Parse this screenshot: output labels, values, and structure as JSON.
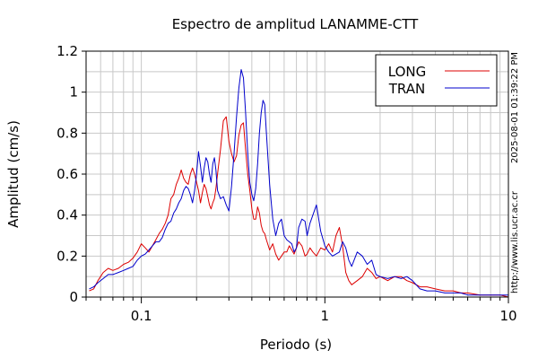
{
  "chart_data": {
    "type": "line",
    "title": "Espectro de amplitud LANAMME-CTT",
    "xlabel": "Periodo (s)",
    "ylabel": "Amplitud (cm/s)",
    "xscale": "log",
    "xlim": [
      0.05,
      10
    ],
    "ylim": [
      0,
      1.2
    ],
    "x_ticks": [
      {
        "value": 0.1,
        "label": "0.1"
      },
      {
        "value": 1,
        "label": "1"
      },
      {
        "value": 10,
        "label": "10"
      }
    ],
    "y_ticks": [
      {
        "value": 0,
        "label": "0"
      },
      {
        "value": 0.2,
        "label": "0.2"
      },
      {
        "value": 0.4,
        "label": "0.4"
      },
      {
        "value": 0.6,
        "label": "0.6"
      },
      {
        "value": 0.8,
        "label": "0.8"
      },
      {
        "value": 1,
        "label": "1"
      },
      {
        "value": 1.2,
        "label": "1.2"
      }
    ],
    "grid": true,
    "legend_position": "top-right",
    "timestamp": "2025-08-01 01:39:22 PM",
    "source": "http://www.lis.ucr.ac.cr",
    "series": [
      {
        "name": "LONG",
        "color": "#dd0000",
        "x": [
          0.052,
          0.055,
          0.058,
          0.062,
          0.066,
          0.07,
          0.075,
          0.08,
          0.085,
          0.09,
          0.095,
          0.1,
          0.105,
          0.11,
          0.115,
          0.12,
          0.125,
          0.13,
          0.135,
          0.14,
          0.145,
          0.15,
          0.155,
          0.16,
          0.165,
          0.17,
          0.175,
          0.18,
          0.185,
          0.19,
          0.195,
          0.2,
          0.205,
          0.21,
          0.215,
          0.22,
          0.225,
          0.23,
          0.235,
          0.24,
          0.245,
          0.25,
          0.255,
          0.26,
          0.27,
          0.28,
          0.29,
          0.3,
          0.31,
          0.32,
          0.33,
          0.34,
          0.35,
          0.36,
          0.37,
          0.38,
          0.39,
          0.4,
          0.41,
          0.42,
          0.43,
          0.44,
          0.45,
          0.46,
          0.47,
          0.48,
          0.5,
          0.52,
          0.54,
          0.56,
          0.58,
          0.6,
          0.62,
          0.64,
          0.66,
          0.68,
          0.7,
          0.72,
          0.75,
          0.78,
          0.8,
          0.83,
          0.86,
          0.9,
          0.95,
          1.0,
          1.05,
          1.1,
          1.15,
          1.2,
          1.25,
          1.3,
          1.35,
          1.4,
          1.5,
          1.6,
          1.7,
          1.8,
          1.9,
          2.0,
          2.2,
          2.4,
          2.6,
          2.8,
          3.0,
          3.3,
          3.6,
          4.0,
          4.5,
          5.0,
          5.5,
          6.0,
          7.0,
          8.0,
          9.0,
          10.0
        ],
        "y": [
          0.03,
          0.04,
          0.08,
          0.12,
          0.14,
          0.13,
          0.14,
          0.16,
          0.17,
          0.19,
          0.22,
          0.26,
          0.24,
          0.22,
          0.25,
          0.28,
          0.31,
          0.33,
          0.36,
          0.4,
          0.48,
          0.5,
          0.55,
          0.58,
          0.62,
          0.58,
          0.56,
          0.55,
          0.6,
          0.63,
          0.6,
          0.56,
          0.52,
          0.46,
          0.51,
          0.55,
          0.53,
          0.49,
          0.45,
          0.43,
          0.46,
          0.48,
          0.53,
          0.6,
          0.72,
          0.86,
          0.88,
          0.76,
          0.7,
          0.66,
          0.69,
          0.79,
          0.84,
          0.85,
          0.72,
          0.6,
          0.52,
          0.43,
          0.38,
          0.38,
          0.44,
          0.41,
          0.35,
          0.32,
          0.31,
          0.28,
          0.23,
          0.26,
          0.21,
          0.18,
          0.2,
          0.22,
          0.22,
          0.25,
          0.23,
          0.21,
          0.24,
          0.27,
          0.25,
          0.2,
          0.21,
          0.24,
          0.22,
          0.2,
          0.24,
          0.23,
          0.26,
          0.22,
          0.3,
          0.34,
          0.25,
          0.12,
          0.08,
          0.06,
          0.08,
          0.1,
          0.14,
          0.12,
          0.09,
          0.1,
          0.08,
          0.1,
          0.1,
          0.08,
          0.07,
          0.05,
          0.05,
          0.04,
          0.03,
          0.03,
          0.02,
          0.02,
          0.01,
          0.01,
          0.01,
          0.0
        ]
      },
      {
        "name": "TRAN",
        "color": "#0000cc",
        "x": [
          0.052,
          0.055,
          0.058,
          0.062,
          0.066,
          0.07,
          0.075,
          0.08,
          0.085,
          0.09,
          0.095,
          0.1,
          0.105,
          0.11,
          0.115,
          0.12,
          0.125,
          0.13,
          0.135,
          0.14,
          0.145,
          0.15,
          0.155,
          0.16,
          0.165,
          0.17,
          0.175,
          0.18,
          0.185,
          0.19,
          0.195,
          0.2,
          0.205,
          0.21,
          0.215,
          0.22,
          0.225,
          0.23,
          0.235,
          0.24,
          0.245,
          0.25,
          0.255,
          0.26,
          0.27,
          0.28,
          0.29,
          0.3,
          0.31,
          0.32,
          0.33,
          0.34,
          0.35,
          0.36,
          0.37,
          0.38,
          0.39,
          0.4,
          0.41,
          0.42,
          0.43,
          0.44,
          0.45,
          0.46,
          0.47,
          0.48,
          0.5,
          0.52,
          0.54,
          0.56,
          0.58,
          0.6,
          0.62,
          0.64,
          0.66,
          0.68,
          0.7,
          0.72,
          0.75,
          0.78,
          0.8,
          0.83,
          0.86,
          0.9,
          0.95,
          1.0,
          1.05,
          1.1,
          1.15,
          1.2,
          1.25,
          1.3,
          1.35,
          1.4,
          1.5,
          1.6,
          1.7,
          1.8,
          1.9,
          2.0,
          2.2,
          2.4,
          2.6,
          2.8,
          3.0,
          3.3,
          3.6,
          4.0,
          4.5,
          5.0,
          5.5,
          6.0,
          7.0,
          8.0,
          9.0,
          10.0
        ],
        "y": [
          0.04,
          0.05,
          0.07,
          0.09,
          0.11,
          0.11,
          0.12,
          0.13,
          0.14,
          0.15,
          0.18,
          0.2,
          0.21,
          0.23,
          0.25,
          0.27,
          0.27,
          0.29,
          0.33,
          0.36,
          0.37,
          0.41,
          0.43,
          0.46,
          0.48,
          0.52,
          0.54,
          0.53,
          0.5,
          0.46,
          0.52,
          0.6,
          0.71,
          0.64,
          0.56,
          0.63,
          0.68,
          0.66,
          0.6,
          0.56,
          0.65,
          0.68,
          0.62,
          0.52,
          0.48,
          0.49,
          0.45,
          0.42,
          0.54,
          0.7,
          0.88,
          1.02,
          1.11,
          1.07,
          0.9,
          0.7,
          0.56,
          0.5,
          0.47,
          0.53,
          0.65,
          0.8,
          0.9,
          0.96,
          0.94,
          0.8,
          0.55,
          0.38,
          0.3,
          0.36,
          0.38,
          0.3,
          0.28,
          0.27,
          0.26,
          0.22,
          0.24,
          0.34,
          0.38,
          0.37,
          0.3,
          0.36,
          0.4,
          0.45,
          0.32,
          0.25,
          0.22,
          0.2,
          0.21,
          0.22,
          0.27,
          0.24,
          0.18,
          0.15,
          0.22,
          0.2,
          0.16,
          0.18,
          0.11,
          0.1,
          0.09,
          0.1,
          0.09,
          0.1,
          0.08,
          0.04,
          0.03,
          0.03,
          0.02,
          0.02,
          0.02,
          0.01,
          0.01,
          0.01,
          0.01,
          0.01
        ]
      }
    ]
  }
}
